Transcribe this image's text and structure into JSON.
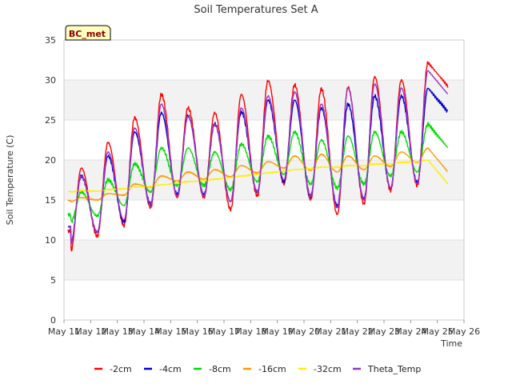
{
  "chart_data": {
    "type": "line",
    "title": "Soil Temperatures Set A",
    "xlabel": "Time",
    "ylabel": "Soil Temperature (C)",
    "ylim": [
      0,
      35
    ],
    "yticks": [
      0,
      5,
      10,
      15,
      20,
      25,
      30,
      35
    ],
    "xlim": [
      "May 11",
      "May 26"
    ],
    "xticks": [
      "May 11",
      "May 12",
      "May 13",
      "May 14",
      "May 15",
      "May 16",
      "May 17",
      "May 18",
      "May 19",
      "May 20",
      "May 21",
      "May 22",
      "May 23",
      "May 24",
      "May 25",
      "May 26"
    ],
    "grid": "horizontal alternating bands",
    "legend": "bottom",
    "annotation": "BC_met",
    "day_max": {
      "-2cm": [
        19.0,
        22.2,
        25.3,
        28.2,
        26.5,
        25.9,
        28.2,
        29.9,
        29.4,
        28.9,
        29.1,
        30.4,
        30.0,
        32.2
      ],
      "-4cm": [
        18.0,
        20.5,
        23.5,
        25.9,
        25.5,
        24.5,
        26.0,
        27.5,
        27.5,
        26.5,
        27.0,
        28.0,
        28.0,
        29.0
      ],
      "-8cm": [
        16.0,
        17.5,
        19.5,
        21.5,
        21.5,
        21.0,
        22.0,
        23.0,
        23.5,
        22.5,
        23.0,
        23.5,
        23.5,
        24.5
      ],
      "-16cm": [
        15.3,
        15.8,
        17.0,
        18.0,
        18.5,
        18.8,
        19.3,
        19.8,
        20.5,
        20.7,
        20.5,
        20.5,
        21.0,
        21.5
      ],
      "-32cm": [
        16.2,
        16.3,
        16.6,
        16.9,
        17.3,
        17.6,
        18.0,
        18.4,
        18.8,
        19.1,
        19.3,
        19.5,
        19.7,
        20.0
      ],
      "Theta_Temp": [
        18.0,
        21.0,
        24.0,
        27.0,
        25.5,
        24.5,
        26.5,
        28.0,
        28.5,
        27.0,
        29.0,
        29.5,
        29.0,
        31.2
      ]
    },
    "day_min": {
      "-2cm": [
        8.5,
        10.5,
        11.8,
        14.0,
        15.3,
        15.3,
        13.8,
        15.5,
        17.0,
        15.0,
        13.2,
        14.5,
        16.2,
        16.8
      ],
      "-4cm": [
        9.6,
        11.0,
        12.3,
        14.5,
        15.7,
        15.7,
        14.8,
        16.0,
        17.3,
        15.5,
        14.3,
        15.2,
        16.5,
        17.2
      ],
      "-8cm": [
        12.2,
        13.0,
        14.3,
        16.0,
        16.8,
        16.8,
        16.3,
        17.3,
        18.2,
        17.0,
        16.5,
        17.0,
        18.0,
        18.5
      ],
      "-16cm": [
        14.8,
        15.0,
        15.6,
        16.6,
        17.4,
        17.6,
        17.9,
        18.4,
        19.0,
        18.7,
        18.5,
        18.8,
        19.2,
        19.7
      ],
      "-32cm": [
        16.0,
        16.1,
        16.4,
        16.7,
        17.1,
        17.4,
        17.8,
        18.2,
        18.6,
        18.9,
        19.1,
        19.3,
        19.5,
        19.8
      ],
      "Theta_Temp": [
        9.5,
        11.0,
        12.5,
        14.5,
        15.5,
        15.5,
        14.8,
        16.0,
        17.5,
        15.5,
        14.0,
        15.0,
        16.5,
        17.0
      ]
    },
    "series": [
      {
        "name": "-2cm",
        "color": "#ff0000"
      },
      {
        "name": "-4cm",
        "color": "#0000cc"
      },
      {
        "name": "-8cm",
        "color": "#00dd00"
      },
      {
        "name": "-16cm",
        "color": "#ff9900"
      },
      {
        "name": "-32cm",
        "color": "#ffee00"
      },
      {
        "name": "Theta_Temp",
        "color": "#9933cc"
      }
    ]
  }
}
